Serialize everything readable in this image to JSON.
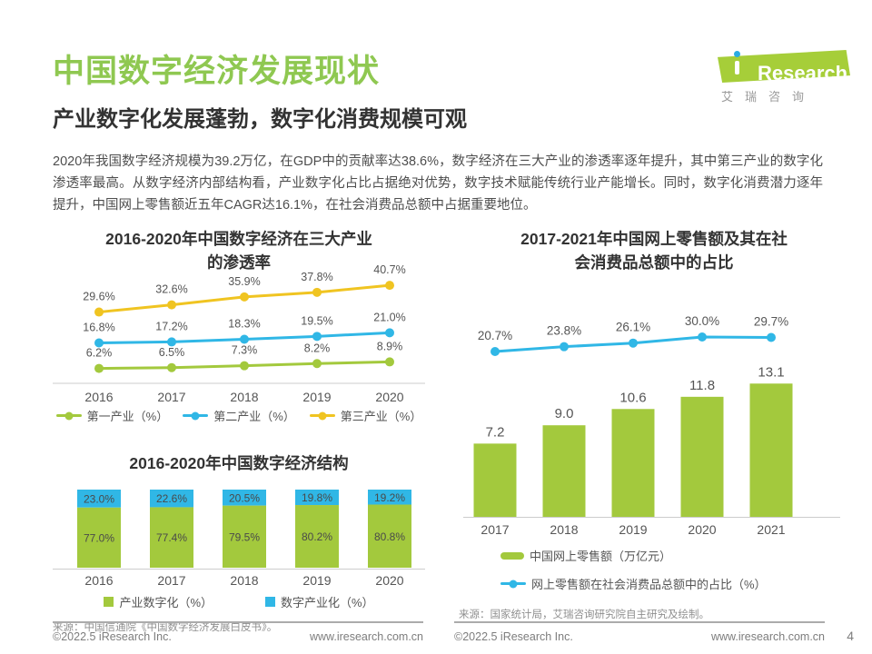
{
  "header": {
    "title": "中国数字经济发展现状",
    "subtitle": "产业数字化发展蓬勃，数字化消费规模可观",
    "intro": "2020年我国数字经济规模为39.2万亿，在GDP中的贡献率达38.6%，数字经济在三大产业的渗透率逐年提升，其中第三产业的数字化渗透率最高。从数字经济内部结构看，产业数字化占比占据绝对优势，数字技术赋能传统行业产能增长。同时，数字化消费潜力逐年提升，中国网上零售额近五年CAGR达16.1%，在社会消费品总额中占据重要地位。",
    "logo": {
      "brand": "Research",
      "caption": "艾瑞咨询"
    }
  },
  "colors": {
    "green": "#A3C93D",
    "blue": "#30B7E6",
    "yellow": "#F0C421",
    "axis": "#cccccc",
    "label": "#555555",
    "bar_label": "#4a4a4a"
  },
  "chart_data": [
    {
      "id": "penetration",
      "type": "line",
      "title_lines": [
        "2016-2020年中国数字经济在三大产业",
        "的渗透率"
      ],
      "categories": [
        "2016",
        "2017",
        "2018",
        "2019",
        "2020"
      ],
      "series": [
        {
          "name": "第一产业（%）",
          "color_key": "green",
          "values": [
            6.2,
            6.5,
            7.3,
            8.2,
            8.9
          ]
        },
        {
          "name": "第二产业（%）",
          "color_key": "blue",
          "values": [
            16.8,
            17.2,
            18.3,
            19.5,
            21.0
          ]
        },
        {
          "name": "第三产业（%）",
          "color_key": "yellow",
          "values": [
            29.6,
            32.6,
            35.9,
            37.8,
            40.7
          ]
        }
      ],
      "ylim": [
        0,
        45
      ],
      "legend_position": "bottom",
      "grid": false
    },
    {
      "id": "structure",
      "type": "stacked-bar",
      "title_lines": [
        "2016-2020年中国数字经济结构"
      ],
      "categories": [
        "2016",
        "2017",
        "2018",
        "2019",
        "2020"
      ],
      "series": [
        {
          "name": "产业数字化（%）",
          "color_key": "green",
          "values": [
            77.0,
            77.4,
            79.5,
            80.2,
            80.8
          ]
        },
        {
          "name": "数字产业化（%）",
          "color_key": "blue",
          "values": [
            23.0,
            22.6,
            20.5,
            19.8,
            19.2
          ]
        }
      ],
      "ylim": [
        0,
        100
      ],
      "legend_position": "bottom",
      "grid": false,
      "source": "来源：中国信通院《中国数字经济发展白皮书》。"
    },
    {
      "id": "retail",
      "type": "bar-line",
      "title_lines": [
        "2017-2021年中国网上零售额及其在社",
        "会消费品总额中的占比"
      ],
      "categories": [
        "2017",
        "2018",
        "2019",
        "2020",
        "2021"
      ],
      "bar_series": {
        "name": "中国网上零售额（万亿元）",
        "color_key": "green",
        "values": [
          7.2,
          9.0,
          10.6,
          11.8,
          13.1
        ]
      },
      "line_series": {
        "name": "网上零售额在社会消费品总额中的占比（%）",
        "color_key": "blue",
        "values": [
          20.7,
          23.8,
          26.1,
          30.0,
          29.7
        ]
      },
      "legend_position": "bottom",
      "grid": false,
      "source": "来源：国家统计局，艾瑞咨询研究院自主研究及绘制。"
    }
  ],
  "footer": {
    "left_copyright": "©2022.5 iResearch Inc.",
    "left_site": "www.iresearch.com.cn",
    "right_copyright": "©2022.5 iResearch Inc.",
    "right_site": "www.iresearch.com.cn",
    "page_number": "4"
  }
}
